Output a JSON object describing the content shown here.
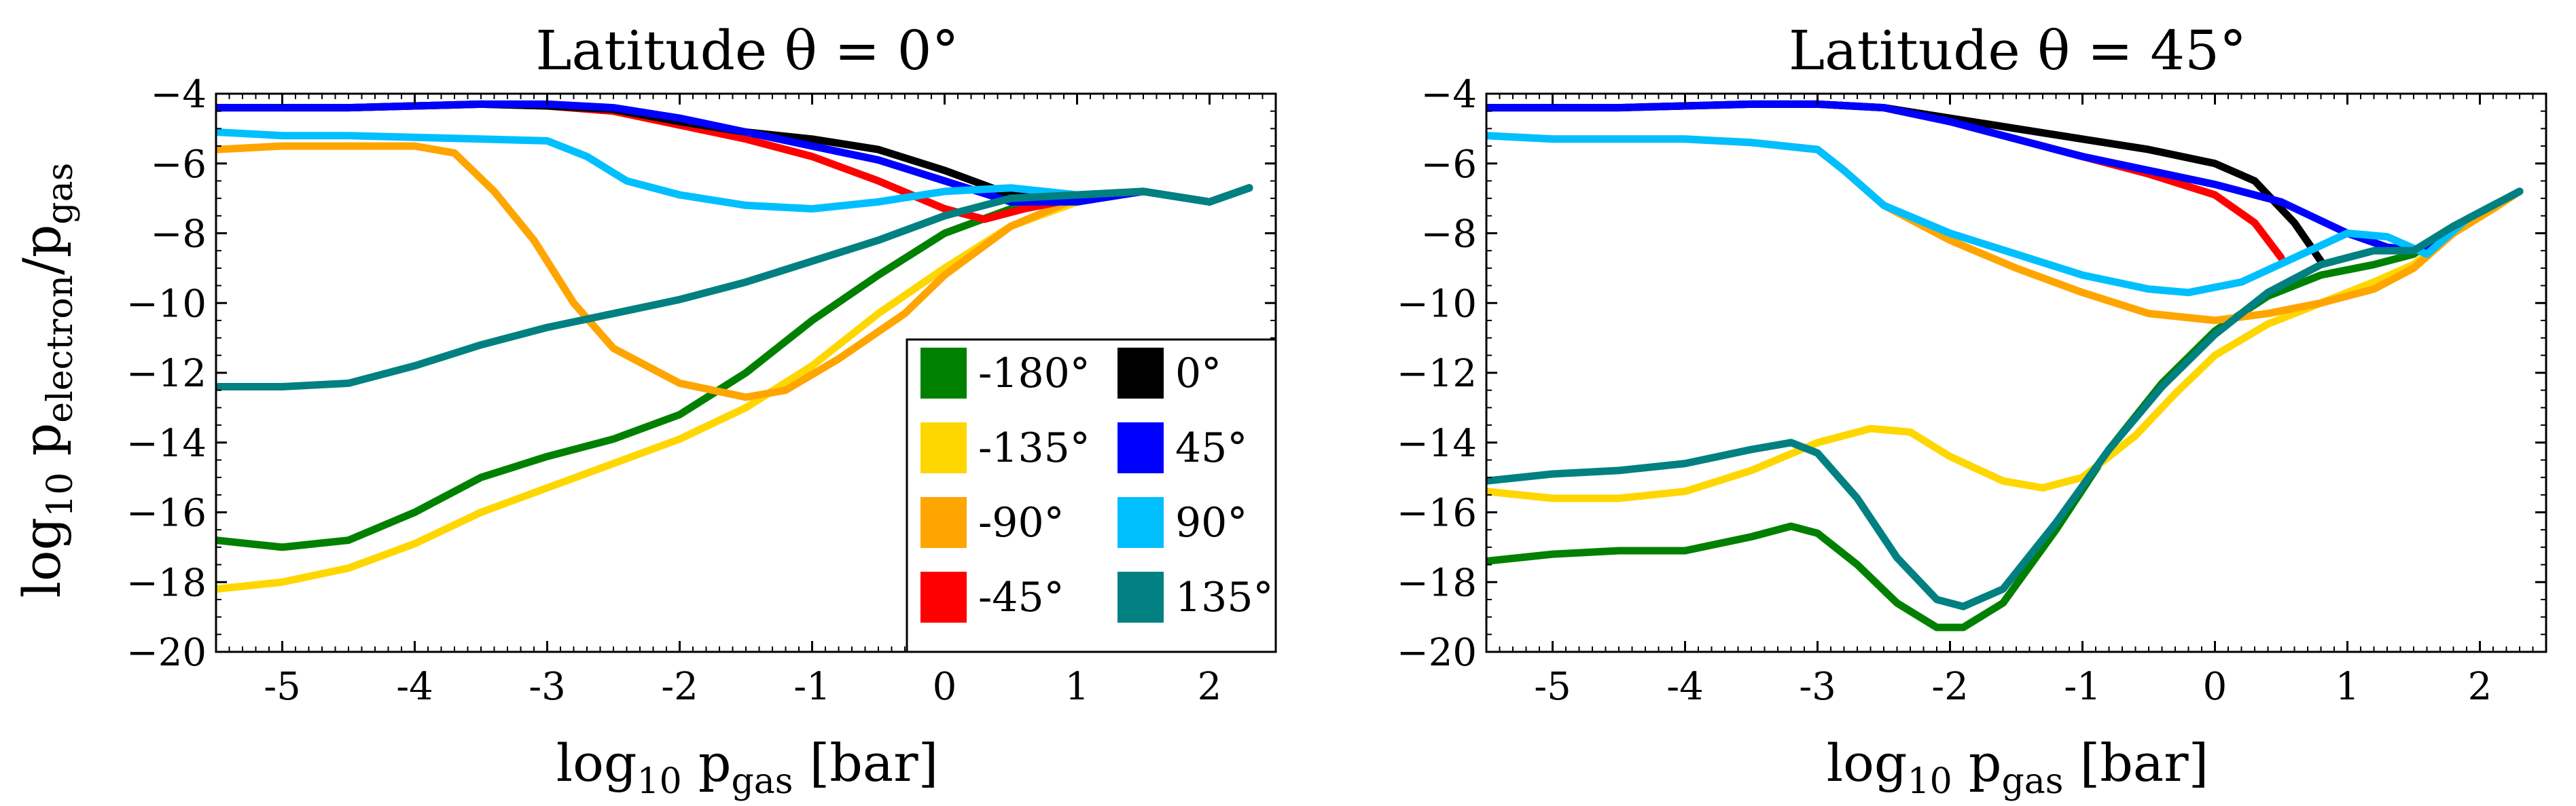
{
  "figure": {
    "ylabel_main": "log",
    "ylabel_sub": "10",
    "ylabel_rest": " p",
    "ylabel_sub2": "electron",
    "ylabel_slash": "/p",
    "ylabel_sub3": "gas"
  },
  "legend": {
    "entries": [
      {
        "label": "-180°",
        "color": "#008000"
      },
      {
        "label": "-135°",
        "color": "#FFD700"
      },
      {
        "label": "-90°",
        "color": "#FFA500"
      },
      {
        "label": "-45°",
        "color": "#FF0000"
      },
      {
        "label": "0°",
        "color": "#000000"
      },
      {
        "label": "45°",
        "color": "#0000FF"
      },
      {
        "label": "90°",
        "color": "#00BFFF"
      },
      {
        "label": "135°",
        "color": "#008080"
      }
    ]
  },
  "chart_data": [
    {
      "type": "line",
      "title": "Latitude θ = 0°",
      "xlabel": "log10 pgas [bar]",
      "ylabel": "log10 pelectron/pgas",
      "xlim": [
        -5.5,
        2.5
      ],
      "ylim": [
        -20,
        -4
      ],
      "xticks": [
        -5,
        -4,
        -3,
        -2,
        -1,
        0,
        1,
        2
      ],
      "yticks": [
        -20,
        -18,
        -16,
        -14,
        -12,
        -10,
        -8,
        -6,
        -4
      ],
      "series": [
        {
          "name": "-180°",
          "color": "#008000",
          "x": [
            -5.5,
            -5.0,
            -4.5,
            -4.0,
            -3.5,
            -3.0,
            -2.5,
            -2.0,
            -1.5,
            -1.0,
            -0.5,
            0.0,
            0.5,
            1.0,
            1.5,
            2.0,
            2.3
          ],
          "y": [
            -16.8,
            -17.0,
            -16.8,
            -16.0,
            -15.0,
            -14.4,
            -13.9,
            -13.2,
            -12.0,
            -10.5,
            -9.2,
            -8.0,
            -7.3,
            -7.0,
            -6.8,
            -7.1,
            -6.7
          ]
        },
        {
          "name": "-135°",
          "color": "#FFD700",
          "x": [
            -5.5,
            -5.0,
            -4.5,
            -4.0,
            -3.5,
            -3.0,
            -2.5,
            -2.0,
            -1.5,
            -1.0,
            -0.5,
            0.0,
            0.5,
            1.0,
            1.5,
            2.0,
            2.3
          ],
          "y": [
            -18.2,
            -18.0,
            -17.6,
            -16.9,
            -16.0,
            -15.3,
            -14.6,
            -13.9,
            -13.0,
            -11.8,
            -10.3,
            -9.0,
            -7.8,
            -7.1,
            -6.8,
            -7.1,
            -6.7
          ]
        },
        {
          "name": "-90°",
          "color": "#FFA500",
          "x": [
            -5.5,
            -5.0,
            -4.5,
            -4.0,
            -3.7,
            -3.4,
            -3.1,
            -2.8,
            -2.5,
            -2.0,
            -1.5,
            -1.2,
            -0.8,
            -0.3,
            0.0,
            0.5,
            1.0,
            1.5,
            2.0,
            2.3
          ],
          "y": [
            -5.6,
            -5.5,
            -5.5,
            -5.5,
            -5.7,
            -6.8,
            -8.2,
            -10.0,
            -11.3,
            -12.3,
            -12.7,
            -12.5,
            -11.6,
            -10.3,
            -9.2,
            -7.8,
            -7.0,
            -6.8,
            -7.1,
            -6.7
          ]
        },
        {
          "name": "-45°",
          "color": "#FF0000",
          "x": [
            -5.5,
            -5.0,
            -4.5,
            -4.0,
            -3.5,
            -3.0,
            -2.5,
            -2.0,
            -1.5,
            -1.0,
            -0.5,
            0.0,
            0.3,
            0.6,
            1.0,
            1.5,
            2.0,
            2.3
          ],
          "y": [
            -4.4,
            -4.4,
            -4.4,
            -4.35,
            -4.3,
            -4.35,
            -4.5,
            -4.9,
            -5.3,
            -5.8,
            -6.5,
            -7.3,
            -7.6,
            -7.3,
            -7.0,
            -6.8,
            -7.1,
            -6.7
          ]
        },
        {
          "name": "0°",
          "color": "#000000",
          "x": [
            -5.5,
            -5.0,
            -4.5,
            -4.0,
            -3.5,
            -3.0,
            -2.5,
            -2.0,
            -1.5,
            -1.0,
            -0.5,
            0.0,
            0.5,
            1.0,
            1.5,
            2.0,
            2.3
          ],
          "y": [
            -4.4,
            -4.4,
            -4.4,
            -4.35,
            -4.3,
            -4.35,
            -4.45,
            -4.8,
            -5.1,
            -5.3,
            -5.6,
            -6.2,
            -6.9,
            -7.0,
            -6.8,
            -7.1,
            -6.7
          ]
        },
        {
          "name": "45°",
          "color": "#0000FF",
          "x": [
            -5.5,
            -5.0,
            -4.5,
            -4.0,
            -3.5,
            -3.0,
            -2.5,
            -2.0,
            -1.5,
            -1.0,
            -0.5,
            0.0,
            0.5,
            1.0,
            1.5,
            2.0,
            2.3
          ],
          "y": [
            -4.4,
            -4.4,
            -4.4,
            -4.35,
            -4.3,
            -4.3,
            -4.4,
            -4.7,
            -5.1,
            -5.5,
            -5.9,
            -6.5,
            -7.1,
            -7.1,
            -6.8,
            -7.1,
            -6.7
          ]
        },
        {
          "name": "90°",
          "color": "#00BFFF",
          "x": [
            -5.5,
            -5.0,
            -4.5,
            -4.0,
            -3.5,
            -3.0,
            -2.7,
            -2.4,
            -2.0,
            -1.5,
            -1.0,
            -0.5,
            0.0,
            0.5,
            1.0,
            1.5,
            2.0,
            2.3
          ],
          "y": [
            -5.1,
            -5.2,
            -5.2,
            -5.25,
            -5.3,
            -5.35,
            -5.8,
            -6.5,
            -6.9,
            -7.2,
            -7.3,
            -7.1,
            -6.8,
            -6.7,
            -6.9,
            -6.8,
            -7.1,
            -6.7
          ]
        },
        {
          "name": "135°",
          "color": "#008080",
          "x": [
            -5.5,
            -5.0,
            -4.5,
            -4.0,
            -3.5,
            -3.0,
            -2.5,
            -2.0,
            -1.5,
            -1.0,
            -0.5,
            0.0,
            0.5,
            1.0,
            1.5,
            2.0,
            2.3
          ],
          "y": [
            -12.4,
            -12.4,
            -12.3,
            -11.8,
            -11.2,
            -10.7,
            -10.3,
            -9.9,
            -9.4,
            -8.8,
            -8.2,
            -7.5,
            -7.0,
            -6.9,
            -6.8,
            -7.1,
            -6.7
          ]
        }
      ]
    },
    {
      "type": "line",
      "title": "Latitude θ = 45°",
      "xlabel": "log10 pgas [bar]",
      "xlim": [
        -5.5,
        2.5
      ],
      "ylim": [
        -20,
        -4
      ],
      "xticks": [
        -5,
        -4,
        -3,
        -2,
        -1,
        0,
        1,
        2
      ],
      "yticks": [
        -20,
        -18,
        -16,
        -14,
        -12,
        -10,
        -8,
        -6,
        -4
      ],
      "series": [
        {
          "name": "-180°",
          "color": "#008000",
          "x": [
            -5.5,
            -5.0,
            -4.5,
            -4.0,
            -3.5,
            -3.2,
            -3.0,
            -2.7,
            -2.4,
            -2.1,
            -1.9,
            -1.6,
            -1.2,
            -0.8,
            -0.4,
            0.0,
            0.4,
            0.8,
            1.2,
            1.5,
            1.8,
            2.1,
            2.3
          ],
          "y": [
            -17.4,
            -17.2,
            -17.1,
            -17.1,
            -16.7,
            -16.4,
            -16.6,
            -17.5,
            -18.6,
            -19.3,
            -19.3,
            -18.6,
            -16.5,
            -14.2,
            -12.3,
            -10.8,
            -9.8,
            -9.2,
            -8.9,
            -8.6,
            -7.8,
            -7.2,
            -6.8
          ]
        },
        {
          "name": "-135°",
          "color": "#FFD700",
          "x": [
            -5.5,
            -5.0,
            -4.5,
            -4.0,
            -3.5,
            -3.0,
            -2.6,
            -2.3,
            -2.0,
            -1.6,
            -1.3,
            -1.0,
            -0.6,
            -0.3,
            0.0,
            0.4,
            0.8,
            1.2,
            1.5,
            1.8,
            2.1,
            2.3
          ],
          "y": [
            -15.4,
            -15.6,
            -15.6,
            -15.4,
            -14.8,
            -14.0,
            -13.6,
            -13.7,
            -14.4,
            -15.1,
            -15.3,
            -15.0,
            -13.8,
            -12.6,
            -11.5,
            -10.6,
            -10.0,
            -9.4,
            -8.9,
            -8.0,
            -7.3,
            -6.8
          ]
        },
        {
          "name": "-90°",
          "color": "#FFA500",
          "x": [
            -5.5,
            -5.0,
            -4.5,
            -4.0,
            -3.5,
            -3.0,
            -2.8,
            -2.5,
            -2.0,
            -1.5,
            -1.0,
            -0.5,
            0.0,
            0.4,
            0.8,
            1.2,
            1.5,
            1.8,
            2.1,
            2.3
          ],
          "y": [
            -5.2,
            -5.3,
            -5.3,
            -5.3,
            -5.4,
            -5.6,
            -6.2,
            -7.2,
            -8.2,
            -9.0,
            -9.7,
            -10.3,
            -10.5,
            -10.3,
            -10.0,
            -9.6,
            -9.0,
            -8.0,
            -7.3,
            -6.8
          ]
        },
        {
          "name": "-45°",
          "color": "#FF0000",
          "x": [
            -5.5,
            -5.0,
            -4.5,
            -4.0,
            -3.5,
            -3.0,
            -2.5,
            -2.0,
            -1.5,
            -1.0,
            -0.5,
            0.0,
            0.3,
            0.5
          ],
          "y": [
            -4.4,
            -4.4,
            -4.4,
            -4.35,
            -4.3,
            -4.3,
            -4.4,
            -4.8,
            -5.3,
            -5.8,
            -6.3,
            -6.9,
            -7.7,
            -8.7
          ]
        },
        {
          "name": "0°",
          "color": "#000000",
          "x": [
            -5.5,
            -5.0,
            -4.5,
            -4.0,
            -3.5,
            -3.0,
            -2.5,
            -2.0,
            -1.5,
            -1.0,
            -0.5,
            0.0,
            0.3,
            0.6,
            0.8
          ],
          "y": [
            -4.4,
            -4.4,
            -4.4,
            -4.35,
            -4.3,
            -4.3,
            -4.4,
            -4.7,
            -5.0,
            -5.3,
            -5.6,
            -6.0,
            -6.5,
            -7.7,
            -8.8
          ]
        },
        {
          "name": "45°",
          "color": "#0000FF",
          "x": [
            -5.5,
            -5.0,
            -4.5,
            -4.0,
            -3.5,
            -3.0,
            -2.5,
            -2.0,
            -1.5,
            -1.0,
            -0.5,
            0.0,
            0.5,
            1.0,
            1.3,
            1.6,
            1.9,
            2.1,
            2.3
          ],
          "y": [
            -4.4,
            -4.4,
            -4.4,
            -4.35,
            -4.3,
            -4.3,
            -4.4,
            -4.8,
            -5.3,
            -5.8,
            -6.2,
            -6.6,
            -7.1,
            -8.0,
            -8.4,
            -8.5,
            -7.6,
            -7.2,
            -6.8
          ]
        },
        {
          "name": "90°",
          "color": "#00BFFF",
          "x": [
            -5.5,
            -5.0,
            -4.5,
            -4.0,
            -3.5,
            -3.0,
            -2.8,
            -2.5,
            -2.0,
            -1.5,
            -1.0,
            -0.5,
            -0.2,
            0.2,
            0.6,
            1.0,
            1.3,
            1.6,
            1.9,
            2.1,
            2.3
          ],
          "y": [
            -5.2,
            -5.3,
            -5.3,
            -5.3,
            -5.4,
            -5.6,
            -6.2,
            -7.2,
            -8.0,
            -8.6,
            -9.2,
            -9.6,
            -9.7,
            -9.4,
            -8.7,
            -8.0,
            -8.1,
            -8.6,
            -7.6,
            -7.2,
            -6.8
          ]
        },
        {
          "name": "135°",
          "color": "#008080",
          "x": [
            -5.5,
            -5.0,
            -4.5,
            -4.0,
            -3.5,
            -3.2,
            -3.0,
            -2.7,
            -2.4,
            -2.1,
            -1.9,
            -1.6,
            -1.2,
            -0.8,
            -0.4,
            0.0,
            0.4,
            0.8,
            1.2,
            1.5,
            1.8,
            2.1,
            2.3
          ],
          "y": [
            -15.1,
            -14.9,
            -14.8,
            -14.6,
            -14.2,
            -14.0,
            -14.3,
            -15.6,
            -17.3,
            -18.5,
            -18.7,
            -18.2,
            -16.3,
            -14.2,
            -12.4,
            -10.9,
            -9.7,
            -8.9,
            -8.5,
            -8.5,
            -7.8,
            -7.2,
            -6.8
          ]
        }
      ]
    }
  ]
}
